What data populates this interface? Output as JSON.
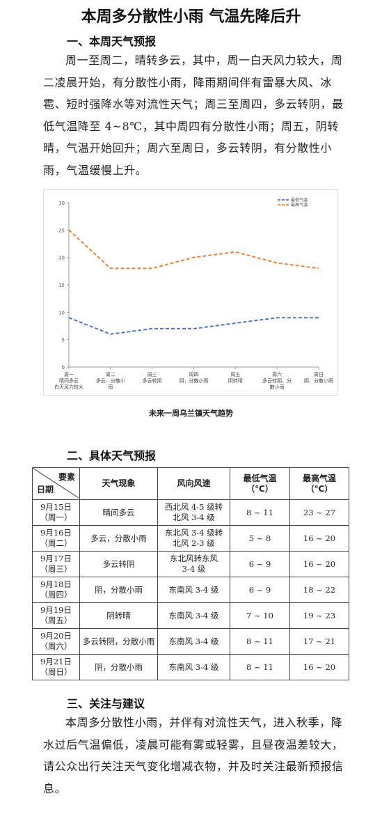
{
  "title": "本周多分散性小雨 气温先降后升",
  "section1": {
    "heading": "一、本周天气预报",
    "text": "周一至周二，晴转多云，其中，周一白天风力较大，周二凌晨开始，有分散性小雨，降雨期间伴有雷暴大风、冰雹、短时强降水等对流性天气；周三至周四，多云转阴，最低气温降至 4~8℃，其中周四有分散性小雨；周五，阴转晴，气温开始回升；周六至周日，多云转阴，有分散性小雨，气温缓慢上升。"
  },
  "chart_caption": "未来一周乌兰镇天气趋势",
  "chart_data": {
    "type": "line",
    "categories": [
      [
        "周一",
        "晴间多云",
        "白天风力较大"
      ],
      [
        "周二",
        "多云、分散小",
        "雨"
      ],
      [
        "周三",
        "多云转阴"
      ],
      [
        "周四",
        "阴，分散小雨"
      ],
      [
        "周五",
        "阴转晴"
      ],
      [
        "周六",
        "多云转阴、分",
        "散小雨"
      ],
      [
        "周日",
        "阴、分散小雨"
      ]
    ],
    "series": [
      {
        "name": "最低气温",
        "values": [
          9,
          6,
          7,
          7,
          8,
          9,
          9
        ],
        "color": "#4a72c4"
      },
      {
        "name": "最高气温",
        "values": [
          25,
          18,
          18,
          20,
          21,
          19,
          18
        ],
        "color": "#e8823a"
      }
    ],
    "ylim": [
      0,
      30
    ],
    "yticks": [
      "0",
      "5",
      "10",
      "15",
      "20",
      "25",
      "30"
    ],
    "legend_position": "top-right",
    "line_style": "dashed"
  },
  "section2": {
    "heading": "二、具体天气预报",
    "header": {
      "corner_top": "要素",
      "corner_bottom": "日期",
      "weather": "天气现象",
      "wind": "风向风速",
      "tmin": "最低气温",
      "tmin_unit": "（℃）",
      "tmax": "最高气温",
      "tmax_unit": "（℃）"
    },
    "rows": [
      {
        "date": "9月15日",
        "day": "（周一）",
        "weather": "晴间多云",
        "wind1": "西北风 4-5 级转",
        "wind2": "北风 3-4 级",
        "tmin": "8 ~ 11",
        "tmax": "23 ~ 27"
      },
      {
        "date": "9月16日",
        "day": "（周二）",
        "weather": "多云，分散小雨",
        "wind1": "东北风 3-4 级转",
        "wind2": "北风 2-3 级",
        "tmin": "5 ~ 8",
        "tmax": "16 ~ 20"
      },
      {
        "date": "9月17日",
        "day": "（周三）",
        "weather": "多云转阴",
        "wind1": "东北风转东风",
        "wind2": "3-4 级",
        "tmin": "6 ~ 9",
        "tmax": "16 ~ 20"
      },
      {
        "date": "9月18日",
        "day": "（周四）",
        "weather": "阴，分散小雨",
        "wind1": "东南风 3-4 级",
        "wind2": "",
        "tmin": "6 ~ 9",
        "tmax": "18 ~ 22"
      },
      {
        "date": "9月19日",
        "day": "（周五）",
        "weather": "阴转晴",
        "wind1": "东南风 3-4 级",
        "wind2": "",
        "tmin": "7 ~ 10",
        "tmax": "19 ~ 23"
      },
      {
        "date": "9月20日",
        "day": "（周六）",
        "weather": "多云转阴，分散小雨",
        "wind1": "东南风 3-4 级",
        "wind2": "",
        "tmin": "8 ~ 11",
        "tmax": "17 ~ 21"
      },
      {
        "date": "9月21日",
        "day": "（周日）",
        "weather": "阴，分散小雨",
        "wind1": "东南风 3-4 级",
        "wind2": "",
        "tmin": "8 ~ 11",
        "tmax": "16 ~ 20"
      }
    ]
  },
  "section3": {
    "heading": "三、关注与建议",
    "text": "本周多分散性小雨，并伴有对流性天气，进入秋季，降水过后气温偏低，凌晨可能有雾或轻雾，且昼夜温差较大，请公众出行关注天气变化增减衣物，并及时关注最新预报信息。"
  }
}
